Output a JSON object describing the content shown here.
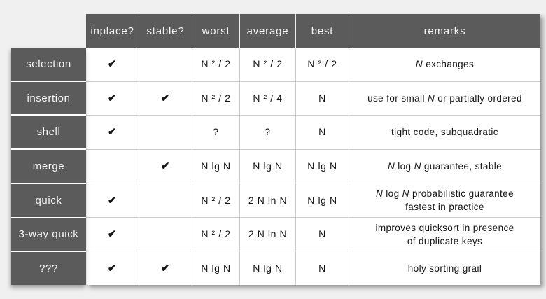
{
  "page": {
    "background": "#f0f0f0"
  },
  "table": {
    "header_bg": "#5b5b5b",
    "header_text_color": "#f5f5f5",
    "grid_line_color": "#cccccc",
    "check_glyph": "✔"
  },
  "chart_data": {
    "type": "table",
    "columns": [
      "inplace?",
      "stable?",
      "worst",
      "average",
      "best",
      "remarks"
    ],
    "rows": [
      {
        "name": "selection",
        "inplace": true,
        "stable": false,
        "worst": "N ² / 2",
        "average": "N ² / 2",
        "best": "N ² / 2",
        "remarks": "N exchanges",
        "remarks_rich": [
          {
            "t": "N",
            "i": 1
          },
          {
            "t": " exchanges"
          }
        ]
      },
      {
        "name": "insertion",
        "inplace": true,
        "stable": true,
        "worst": "N ² / 2",
        "average": "N ² / 4",
        "best": "N",
        "remarks": "use for small N or partially ordered",
        "remarks_rich": [
          {
            "t": "use for small "
          },
          {
            "t": "N",
            "i": 1
          },
          {
            "t": " or partially ordered"
          }
        ]
      },
      {
        "name": "shell",
        "inplace": true,
        "stable": false,
        "worst": "?",
        "average": "?",
        "best": "N",
        "remarks": "tight code, subquadratic",
        "remarks_rich": [
          {
            "t": "tight code, subquadratic"
          }
        ]
      },
      {
        "name": "merge",
        "inplace": false,
        "stable": true,
        "worst": "N lg N",
        "average": "N lg N",
        "best": "N lg N",
        "remarks": "N log N  guarantee, stable",
        "remarks_rich": [
          {
            "t": "N",
            "i": 1
          },
          {
            "t": " log "
          },
          {
            "t": "N",
            "i": 1
          },
          {
            "t": "  guarantee, stable"
          }
        ]
      },
      {
        "name": "quick",
        "inplace": true,
        "stable": false,
        "worst": "N ² / 2",
        "average": "2 N ln N",
        "best": "N lg N",
        "remarks": "N log N  probabilistic guarantee\nfastest in practice",
        "remarks_rich": [
          {
            "t": "N",
            "i": 1
          },
          {
            "t": " log "
          },
          {
            "t": "N",
            "i": 1
          },
          {
            "t": "  probabilistic guarantee"
          },
          {
            "br": 1
          },
          {
            "t": "fastest in practice"
          }
        ]
      },
      {
        "name": "3-way quick",
        "inplace": true,
        "stable": false,
        "worst": "N ² / 2",
        "average": "2 N ln N",
        "best": "N",
        "remarks": "improves quicksort in presence\nof duplicate keys",
        "remarks_rich": [
          {
            "t": "improves quicksort in presence"
          },
          {
            "br": 1
          },
          {
            "t": "of duplicate keys"
          }
        ]
      },
      {
        "name": "???",
        "inplace": true,
        "stable": true,
        "worst": "N lg N",
        "average": "N lg N",
        "best": "N",
        "remarks": "holy sorting grail",
        "remarks_rich": [
          {
            "t": "holy sorting grail"
          }
        ]
      }
    ]
  }
}
